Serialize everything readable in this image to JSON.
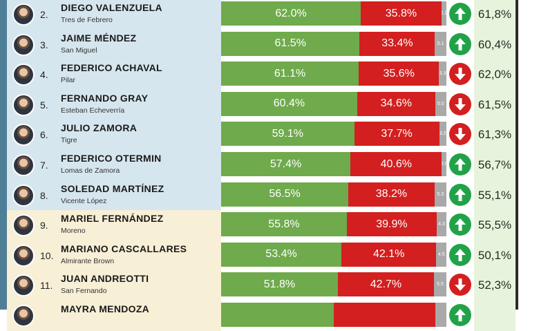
{
  "chart_data": {
    "type": "table",
    "columns": [
      "rank",
      "name",
      "district",
      "green_pct",
      "red_pct",
      "other_pct",
      "trend",
      "previous_pct"
    ],
    "rows": [
      {
        "rank": "2.",
        "name": "DIEGO VALENZUELA",
        "district": "Tres de Febrero",
        "green": 62.0,
        "red": 35.8,
        "other": 2.2,
        "green_label": "62.0%",
        "red_label": "35.8%",
        "other_label": "2.2",
        "trend": "up",
        "prev_label": "61,8%",
        "band": "blue"
      },
      {
        "rank": "3.",
        "name": "JAIME MÉNDEZ",
        "district": "San Miguel",
        "green": 61.5,
        "red": 33.4,
        "other": 5.1,
        "green_label": "61.5%",
        "red_label": "33.4%",
        "other_label": "5.1",
        "trend": "up",
        "prev_label": "60,4%",
        "band": "blue"
      },
      {
        "rank": "4.",
        "name": "FEDERICO ACHAVAL",
        "district": "Pilar",
        "green": 61.1,
        "red": 35.6,
        "other": 3.3,
        "green_label": "61.1%",
        "red_label": "35.6%",
        "other_label": "3.3",
        "trend": "down",
        "prev_label": "62,0%",
        "band": "blue"
      },
      {
        "rank": "5.",
        "name": "FERNANDO GRAY",
        "district": "Esteban Echeverría",
        "green": 60.4,
        "red": 34.6,
        "other": 5.0,
        "green_label": "60.4%",
        "red_label": "34.6%",
        "other_label": "5.0",
        "trend": "down",
        "prev_label": "61,5%",
        "band": "blue"
      },
      {
        "rank": "6.",
        "name": "JULIO ZAMORA",
        "district": "Tigre",
        "green": 59.1,
        "red": 37.7,
        "other": 3.2,
        "green_label": "59.1%",
        "red_label": "37.7%",
        "other_label": "3.2",
        "trend": "down",
        "prev_label": "61,3%",
        "band": "blue"
      },
      {
        "rank": "7.",
        "name": "FEDERICO OTERMIN",
        "district": "Lomas de Zamora",
        "green": 57.4,
        "red": 40.6,
        "other": 2.0,
        "green_label": "57.4%",
        "red_label": "40.6%",
        "other_label": "2.0",
        "trend": "up",
        "prev_label": "56,7%",
        "band": "blue"
      },
      {
        "rank": "8.",
        "name": "SOLEDAD MARTÍNEZ",
        "district": "Vicente López",
        "green": 56.5,
        "red": 38.2,
        "other": 5.3,
        "green_label": "56.5%",
        "red_label": "38.2%",
        "other_label": "5.3",
        "trend": "up",
        "prev_label": "55,1%",
        "band": "blue"
      },
      {
        "rank": "9.",
        "name": "MARIEL FERNÁNDEZ",
        "district": "Moreno",
        "green": 55.8,
        "red": 39.9,
        "other": 4.3,
        "green_label": "55.8%",
        "red_label": "39.9%",
        "other_label": "4.3",
        "trend": "up",
        "prev_label": "55,5%",
        "band": "cream"
      },
      {
        "rank": "10.",
        "name": "MARIANO CASCALLARES",
        "district": "Almirante Brown",
        "green": 53.4,
        "red": 42.1,
        "other": 4.5,
        "green_label": "53.4%",
        "red_label": "42.1%",
        "other_label": "4.5",
        "trend": "up",
        "prev_label": "50,1%",
        "band": "cream"
      },
      {
        "rank": "11.",
        "name": "JUAN ANDREOTTI",
        "district": "San Fernando",
        "green": 51.8,
        "red": 42.7,
        "other": 5.5,
        "green_label": "51.8%",
        "red_label": "42.7%",
        "other_label": "5.5",
        "trend": "down",
        "prev_label": "52,3%",
        "band": "cream"
      },
      {
        "rank": "",
        "name": "MAYRA MENDOZA",
        "district": "",
        "green": 50.0,
        "red": 45.0,
        "other": 5.0,
        "green_label": "",
        "red_label": "",
        "other_label": "",
        "trend": "up",
        "prev_label": "",
        "band": "cream"
      }
    ]
  },
  "colors": {
    "green": "#6faa4c",
    "red": "#d31f1f",
    "grey": "#a9a9a9",
    "up_arrow": "#22a248",
    "down_arrow": "#d31f1f",
    "band_blue": "#d6e6ee",
    "band_cream": "#f7efd6",
    "prev_bg": "#e7f3dc"
  },
  "icons": {
    "up": "arrow-up-icon",
    "down": "arrow-down-icon",
    "avatar": "avatar-photo"
  }
}
